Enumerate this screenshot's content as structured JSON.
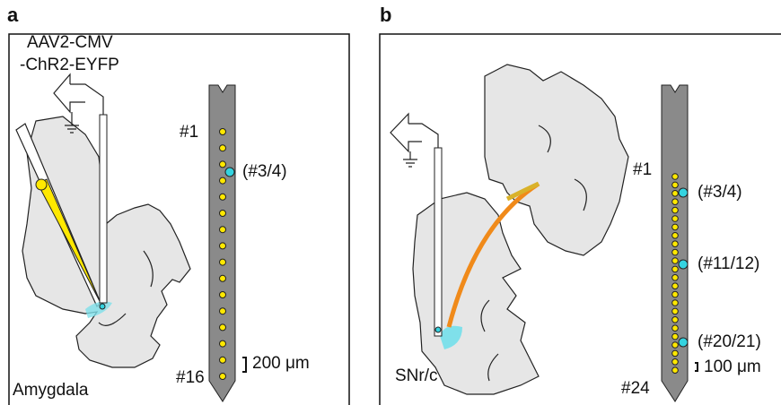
{
  "panel_a": {
    "label": "a",
    "virus_line1": "AAV2-CMV",
    "virus_line2": "-ChR2-EYFP",
    "site_first": "#1",
    "site_highlight": "(#3/4)",
    "site_last": "#16",
    "scale_bar": "200 μm",
    "region": "Amygdala"
  },
  "panel_b": {
    "label": "b",
    "site_first": "#1",
    "site_highlights": [
      "(#3/4)",
      "(#11/12)",
      "(#20/21)"
    ],
    "site_last": "#24",
    "scale_bar": "100 μm",
    "region": "SNr/c"
  }
}
